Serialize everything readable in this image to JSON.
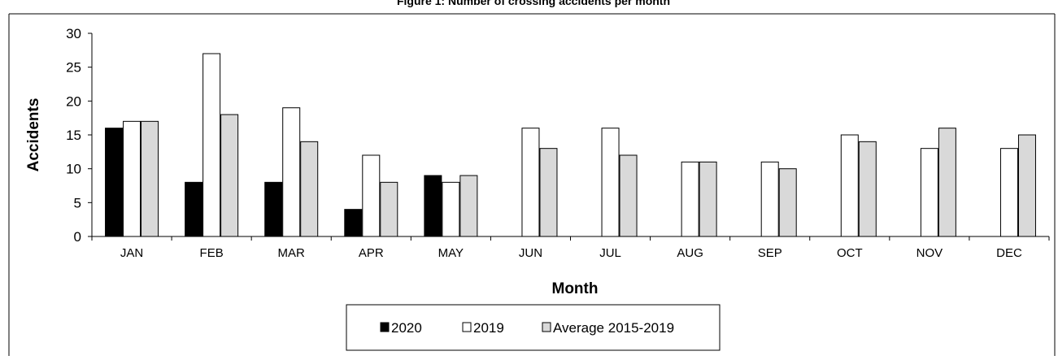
{
  "chart_data": {
    "type": "bar",
    "title": "Figure 1: Number of crossing accidents per month",
    "xlabel": "Month",
    "ylabel": "Accidents",
    "ylim": [
      0,
      30
    ],
    "yticks": [
      0,
      5,
      10,
      15,
      20,
      25,
      30
    ],
    "categories": [
      "JAN",
      "FEB",
      "MAR",
      "APR",
      "MAY",
      "JUN",
      "JUL",
      "AUG",
      "SEP",
      "OCT",
      "NOV",
      "DEC"
    ],
    "series": [
      {
        "name": "2020",
        "color": "#000000",
        "values": [
          16,
          8,
          8,
          4,
          9,
          null,
          null,
          null,
          null,
          null,
          null,
          null
        ]
      },
      {
        "name": "2019",
        "color": "#ffffff",
        "values": [
          17,
          27,
          19,
          12,
          8,
          16,
          16,
          11,
          11,
          15,
          13,
          13
        ]
      },
      {
        "name": "Average 2015-2019",
        "color": "#d9d9d9",
        "values": [
          17,
          18,
          14,
          8,
          9,
          13,
          12,
          11,
          10,
          14,
          16,
          15
        ]
      }
    ],
    "legend_position": "bottom",
    "grid": false
  }
}
